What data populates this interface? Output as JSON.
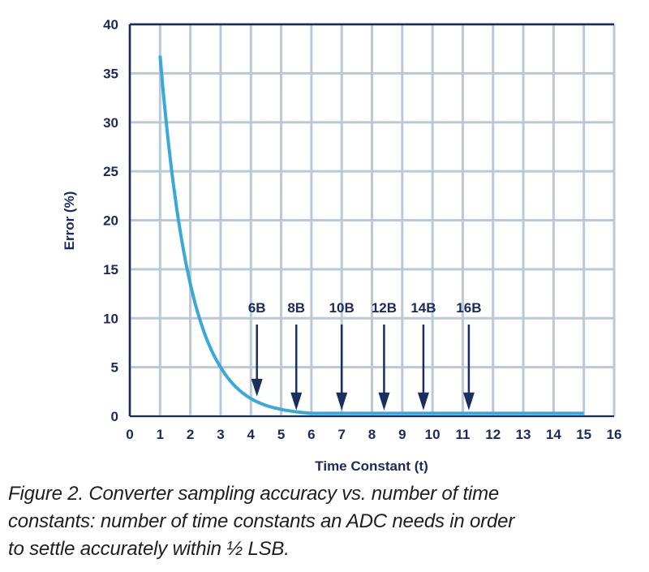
{
  "chart_data": {
    "type": "line",
    "title": "",
    "xlabel": "Time Constant (t)",
    "ylabel": "Error (%)",
    "xlim": [
      0,
      16
    ],
    "ylim": [
      0,
      40
    ],
    "x_ticks": [
      "0",
      "1",
      "2",
      "3",
      "4",
      "5",
      "6",
      "7",
      "8",
      "9",
      "10",
      "11",
      "12",
      "13",
      "14",
      "15",
      "16"
    ],
    "y_ticks": [
      "0",
      "5",
      "10",
      "15",
      "20",
      "25",
      "30",
      "35",
      "40"
    ],
    "grid": true,
    "series": [
      {
        "x": [
          1,
          1.5,
          2,
          2.5,
          3,
          3.5,
          4,
          4.5,
          5,
          5.5,
          6,
          7,
          8,
          9,
          10,
          11,
          12,
          13,
          14,
          15
        ],
        "y": [
          36.8,
          22.3,
          13.5,
          8.2,
          5.0,
          3.0,
          1.8,
          1.1,
          0.7,
          0.45,
          0.3,
          0.3,
          0.3,
          0.3,
          0.3,
          0.3,
          0.3,
          0.3,
          0.3,
          0.3
        ],
        "color": "#3aa8d8"
      }
    ],
    "annotations": [
      {
        "label": "6B",
        "x": 4.2,
        "y": 2.0
      },
      {
        "label": "8B",
        "x": 5.5,
        "y": 0.6
      },
      {
        "label": "10B",
        "x": 7.0,
        "y": 0.6
      },
      {
        "label": "12B",
        "x": 8.4,
        "y": 0.6
      },
      {
        "label": "14B",
        "x": 9.7,
        "y": 0.6
      },
      {
        "label": "16B",
        "x": 11.2,
        "y": 0.6
      }
    ],
    "colors": {
      "axis": "#1b2a5c",
      "grid": "#b9c9d7",
      "arrow": "#1b2f5e",
      "curve": "#3aa8d8"
    }
  },
  "caption": {
    "line1": "Figure 2. Converter sampling accuracy vs. number of time",
    "line2": "constants: number of time constants an ADC needs in order",
    "line3": "to settle accurately within ½ LSB."
  }
}
